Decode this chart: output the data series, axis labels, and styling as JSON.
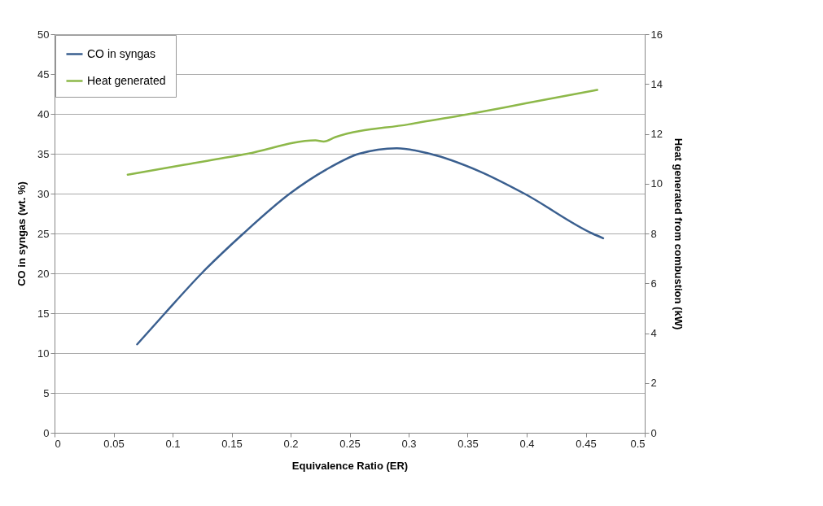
{
  "chart_data": {
    "type": "line",
    "xlabel": "Equivalence Ratio (ER)",
    "ylabel": "CO in syngas (wt. %)",
    "y2label": "Heat generated from combustion (kW)",
    "xlim": [
      0,
      0.5
    ],
    "xticks": [
      0,
      0.05,
      0.1,
      0.15,
      0.2,
      0.25,
      0.3,
      0.35,
      0.4,
      0.45,
      0.5
    ],
    "ylim": [
      0,
      50
    ],
    "yticks": [
      0,
      5,
      10,
      15,
      20,
      25,
      30,
      35,
      40,
      45,
      50
    ],
    "y2lim": [
      0,
      16
    ],
    "y2ticks": [
      0,
      2,
      4,
      6,
      8,
      10,
      12,
      14,
      16
    ],
    "grid": "y",
    "legend": "top left",
    "marker": "none",
    "line_style": "solid",
    "series": [
      {
        "name": "CO in syngas",
        "color": "#3a5f8f",
        "x": [
          0.07,
          0.0936,
          0.1246,
          0.16,
          0.1993,
          0.23,
          0.258,
          0.29,
          0.318,
          0.36,
          0.398,
          0.4556,
          0.4648
        ],
        "values": [
          11.1,
          15,
          20,
          25,
          30,
          33,
          35,
          35.7,
          35,
          32.8,
          30,
          25,
          24.4
        ]
      },
      {
        "name": "Heat generated",
        "color": "#8db849",
        "axis": "y2",
        "x": [
          0.062,
          0.11,
          0.1634,
          0.221,
          0.228,
          0.238,
          0.3,
          0.352,
          0.4,
          0.4598
        ],
        "values": [
          10.36,
          10.76,
          11.2,
          11.74,
          11.69,
          11.87,
          12.38,
          12.8,
          13.23,
          13.76
        ]
      }
    ]
  }
}
